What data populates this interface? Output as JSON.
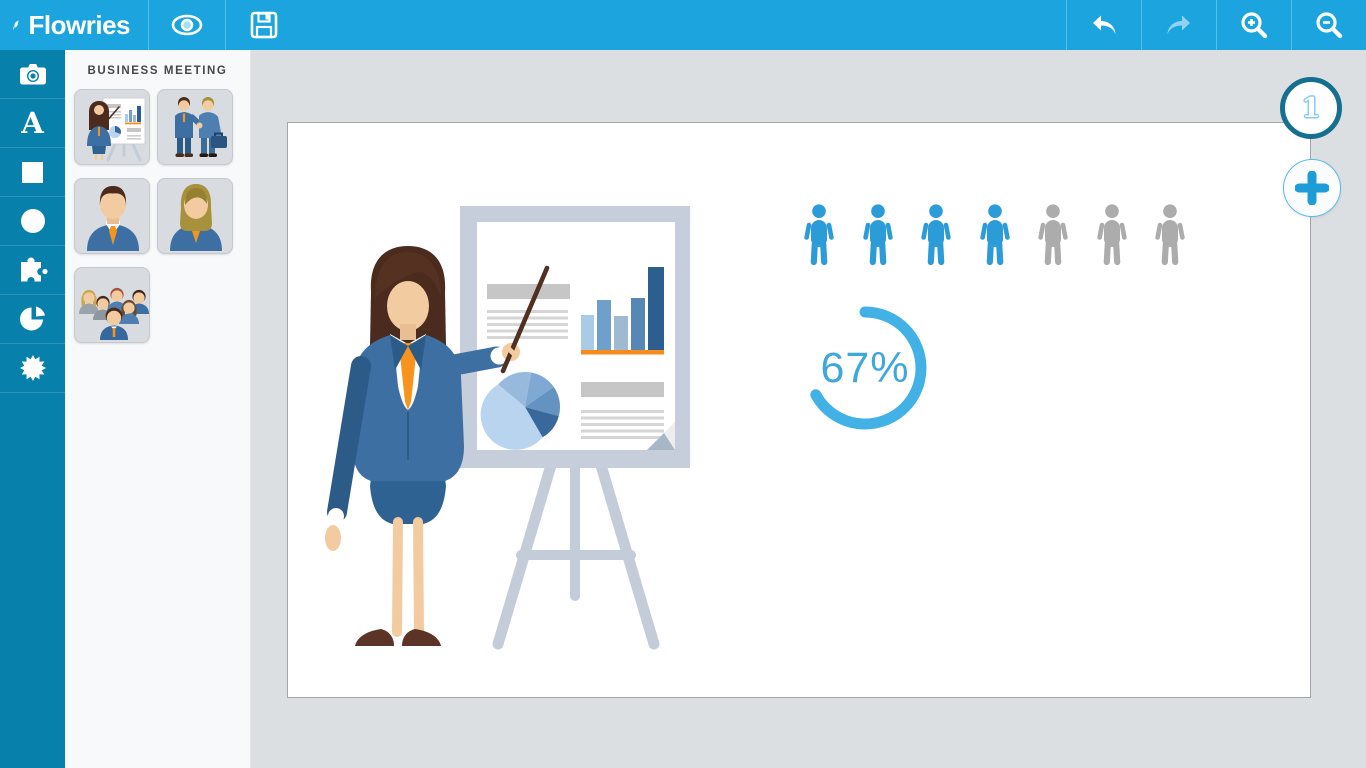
{
  "app": {
    "brand": "Flowries"
  },
  "topbar": {
    "buttons_left": [
      {
        "name": "preview",
        "icon": "eye-icon"
      },
      {
        "name": "save",
        "icon": "save-icon"
      }
    ],
    "buttons_right": [
      {
        "name": "undo",
        "icon": "undo-icon"
      },
      {
        "name": "redo",
        "icon": "redo-icon"
      },
      {
        "name": "zoom-in",
        "icon": "zoom-in-icon"
      },
      {
        "name": "zoom-out",
        "icon": "zoom-out-icon"
      }
    ]
  },
  "toolbar": {
    "tools": [
      "camera",
      "text",
      "square",
      "circle",
      "puzzle",
      "pie-chart",
      "badge"
    ],
    "text_tool_glyph": "A"
  },
  "assets_panel": {
    "title": "BUSINESS MEETING",
    "thumbnails": [
      "presenter-at-flipchart",
      "businessmen-handshake",
      "businessman-portrait",
      "businesswoman-portrait",
      "business-team-group"
    ]
  },
  "canvas": {
    "slide_number": "1",
    "add_button_glyph": "+",
    "people_infographic": {
      "total": 7,
      "highlighted": 4,
      "active_color": "#2B9CD8",
      "inactive_color": "#ACACAC"
    },
    "progress_ring": {
      "label": "67%",
      "percent": 67,
      "color": "#41B1E6",
      "text_color": "#3EA7DB"
    }
  },
  "colors": {
    "topbar": "#1BA4DE",
    "sidebar": "#0780AB",
    "panel": "#F8F9FB",
    "workspace": "#DCDFE2",
    "accent_orange": "#F7941E"
  }
}
